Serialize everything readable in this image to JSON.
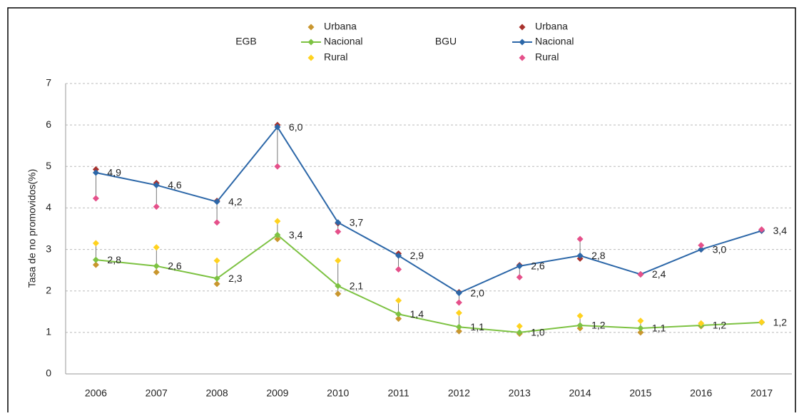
{
  "chart_data": {
    "type": "line",
    "y_label": "Tasa  de no promovidos(%)",
    "categories": [
      "2006",
      "2007",
      "2008",
      "2009",
      "2010",
      "2011",
      "2012",
      "2013",
      "2014",
      "2015",
      "2016",
      "2017"
    ],
    "series": [
      {
        "group": "EGB",
        "name": "Urbana",
        "color": "#c9962e",
        "line": false,
        "values": [
          2.63,
          2.45,
          2.17,
          3.25,
          1.93,
          1.33,
          1.03,
          0.97,
          1.1,
          1.0,
          1.15,
          1.25
        ]
      },
      {
        "group": "EGB",
        "name": "Nacional",
        "color": "#7dc242",
        "line": true,
        "values": [
          2.75,
          2.6,
          2.3,
          3.35,
          2.12,
          1.44,
          1.13,
          1.0,
          1.17,
          1.1,
          1.17,
          1.24
        ],
        "value_labels": [
          "2,8",
          "2,6",
          "2,3",
          "3,4",
          "2,1",
          "1,4",
          "1,1",
          "1,0",
          "1,2",
          "1,1",
          "1,2",
          "1,2"
        ]
      },
      {
        "group": "EGB",
        "name": "Rural",
        "color": "#ffd21f",
        "line": false,
        "values": [
          3.15,
          3.05,
          2.73,
          3.68,
          2.73,
          1.77,
          1.47,
          1.15,
          1.4,
          1.28,
          1.22,
          1.25
        ]
      },
      {
        "group": "BGU",
        "name": "Urbana",
        "color": "#a8322d",
        "line": false,
        "values": [
          4.93,
          4.6,
          4.17,
          6.0,
          3.63,
          2.9,
          1.97,
          2.62,
          2.78,
          2.4,
          3.0,
          3.45
        ]
      },
      {
        "group": "BGU",
        "name": "Nacional",
        "color": "#2c67a8",
        "line": true,
        "values": [
          4.85,
          4.55,
          4.15,
          5.95,
          3.65,
          2.85,
          1.95,
          2.6,
          2.85,
          2.4,
          3.0,
          3.45
        ],
        "value_labels": [
          "4,9",
          "4,6",
          "4,2",
          "6,0",
          "3,7",
          "2,9",
          "2,0",
          "2,6",
          "2,8",
          "2,4",
          "3,0",
          "3,4"
        ]
      },
      {
        "group": "BGU",
        "name": "Rural",
        "color": "#e5508a",
        "line": false,
        "values": [
          4.23,
          4.03,
          3.65,
          5.0,
          3.43,
          2.52,
          1.72,
          2.33,
          3.25,
          2.4,
          3.1,
          3.48
        ]
      }
    ],
    "ylim": [
      0,
      7
    ],
    "yticks": [
      0,
      1,
      2,
      3,
      4,
      5,
      6,
      7
    ],
    "grid": true
  }
}
